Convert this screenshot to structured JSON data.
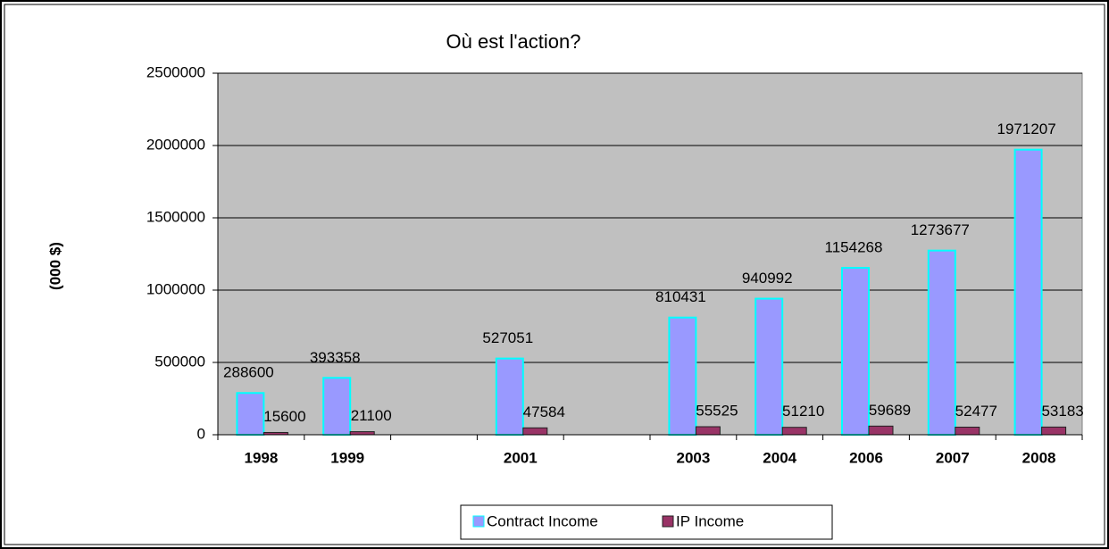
{
  "chart_data": {
    "type": "bar",
    "title": "Où est l'action?",
    "y_label": "(000 $)",
    "categories": [
      "1998",
      "1999",
      null,
      "2001",
      null,
      "2003",
      "2004",
      "2006",
      "2007",
      "2008"
    ],
    "series": [
      {
        "name": "Contract Income",
        "color": "#9999ff",
        "edge": "#00ffff",
        "values": [
          288600,
          393358,
          null,
          527051,
          null,
          810431,
          940992,
          1154268,
          1273677,
          1971207
        ]
      },
      {
        "name": "IP Income",
        "color": "#993366",
        "edge": "#222222",
        "values": [
          15600,
          21100,
          null,
          47584,
          null,
          55525,
          51210,
          59689,
          52477,
          53183
        ]
      }
    ],
    "ylim": [
      0,
      2500000
    ],
    "yticks": [
      0,
      500000,
      1000000,
      1500000,
      2000000,
      2500000
    ],
    "grid": true,
    "legend": "bottom"
  }
}
